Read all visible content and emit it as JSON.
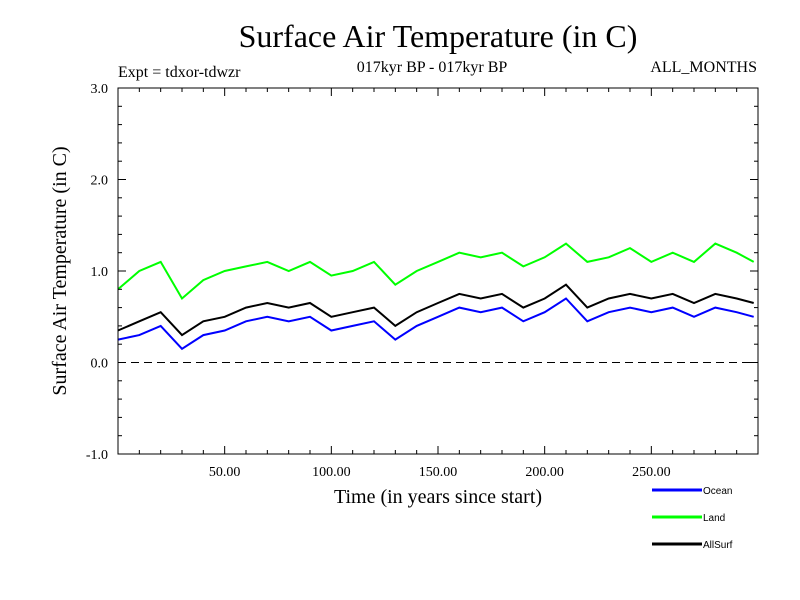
{
  "chart_data": {
    "type": "line",
    "title": "Surface Air Temperature (in C)",
    "subtitle_left": "Expt = tdxor-tdwzr",
    "subtitle_center": "017kyr BP - 017kyr BP",
    "subtitle_right": "ALL_MONTHS",
    "xlabel": "Time (in years since start)",
    "ylabel": "Surface Air Temperature (in C)",
    "xlim": [
      0,
      300
    ],
    "ylim": [
      -1.0,
      3.0
    ],
    "x_ticks": [
      50,
      100,
      150,
      200,
      250
    ],
    "x_tick_labels": [
      "50.00",
      "100.00",
      "150.00",
      "200.00",
      "250.00"
    ],
    "y_ticks": [
      -1.0,
      0.0,
      1.0,
      2.0,
      3.0
    ],
    "y_tick_labels": [
      "-1.0",
      "0.0",
      "1.0",
      "2.0",
      "3.0"
    ],
    "reference_line": {
      "y": 0.0,
      "style": "dashed"
    },
    "legend_position": "bottom-right",
    "series": [
      {
        "name": "Ocean",
        "color": "#0000ff",
        "x": [
          0,
          10,
          20,
          30,
          40,
          50,
          60,
          70,
          80,
          90,
          100,
          110,
          120,
          130,
          140,
          150,
          160,
          170,
          180,
          190,
          200,
          210,
          220,
          230,
          240,
          250,
          260,
          270,
          280,
          290,
          298
        ],
        "values": [
          0.25,
          0.3,
          0.4,
          0.15,
          0.3,
          0.35,
          0.45,
          0.5,
          0.45,
          0.5,
          0.35,
          0.4,
          0.45,
          0.25,
          0.4,
          0.5,
          0.6,
          0.55,
          0.6,
          0.45,
          0.55,
          0.7,
          0.45,
          0.55,
          0.6,
          0.55,
          0.6,
          0.5,
          0.6,
          0.55,
          0.5
        ]
      },
      {
        "name": "Land",
        "color": "#00ff00",
        "x": [
          0,
          10,
          20,
          30,
          40,
          50,
          60,
          70,
          80,
          90,
          100,
          110,
          120,
          130,
          140,
          150,
          160,
          170,
          180,
          190,
          200,
          210,
          220,
          230,
          240,
          250,
          260,
          270,
          280,
          290,
          298
        ],
        "values": [
          0.8,
          1.0,
          1.1,
          0.7,
          0.9,
          1.0,
          1.05,
          1.1,
          1.0,
          1.1,
          0.95,
          1.0,
          1.1,
          0.85,
          1.0,
          1.1,
          1.2,
          1.15,
          1.2,
          1.05,
          1.15,
          1.3,
          1.1,
          1.15,
          1.25,
          1.1,
          1.2,
          1.1,
          1.3,
          1.2,
          1.1
        ]
      },
      {
        "name": "AllSurf",
        "color": "#000000",
        "x": [
          0,
          10,
          20,
          30,
          40,
          50,
          60,
          70,
          80,
          90,
          100,
          110,
          120,
          130,
          140,
          150,
          160,
          170,
          180,
          190,
          200,
          210,
          220,
          230,
          240,
          250,
          260,
          270,
          280,
          290,
          298
        ],
        "values": [
          0.35,
          0.45,
          0.55,
          0.3,
          0.45,
          0.5,
          0.6,
          0.65,
          0.6,
          0.65,
          0.5,
          0.55,
          0.6,
          0.4,
          0.55,
          0.65,
          0.75,
          0.7,
          0.75,
          0.6,
          0.7,
          0.85,
          0.6,
          0.7,
          0.75,
          0.7,
          0.75,
          0.65,
          0.75,
          0.7,
          0.65
        ]
      }
    ]
  }
}
